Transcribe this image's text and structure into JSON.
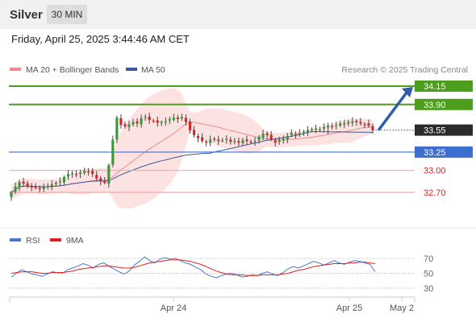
{
  "header": {
    "symbol": "Silver",
    "timeframe": "30 MIN",
    "datetime": "Friday, April 25, 2025 3:44:46 AM CET"
  },
  "legend": {
    "ma20_label": "MA 20 + Bollinger Bands",
    "ma50_label": "MA 50",
    "attribution": "Research © 2025 Trading Central",
    "ma20_color": "#f08a8a",
    "ma50_color": "#3c5a9a"
  },
  "rsi_legend": {
    "rsi_label": "RSI",
    "ma_label": "9MA",
    "rsi_color": "#4a78c8",
    "ma_color": "#e02020"
  },
  "chart_data": [
    {
      "type": "candlestick",
      "title": "Silver 30 MIN",
      "ylim": [
        32.4,
        34.4
      ],
      "x_ticks": [
        "Apr 24",
        "Apr 25",
        "May 2"
      ],
      "levels": [
        {
          "value": "34.15",
          "kind": "target",
          "color": "#4c9e1c"
        },
        {
          "value": "33.90",
          "kind": "resistance",
          "color": "#4c9e1c"
        },
        {
          "value": "33.55",
          "kind": "current",
          "color": "#222222"
        },
        {
          "value": "33.25",
          "kind": "pivot",
          "color": "#3c6fd0"
        },
        {
          "value": "33.00",
          "kind": "support",
          "color": "#e02020"
        },
        {
          "value": "32.70",
          "kind": "support",
          "color": "#e02020"
        }
      ],
      "closes": [
        32.7,
        32.78,
        32.84,
        32.82,
        32.79,
        32.77,
        32.76,
        32.75,
        32.77,
        32.79,
        32.81,
        32.83,
        32.85,
        32.91,
        32.95,
        32.96,
        32.94,
        32.97,
        32.99,
        32.98,
        32.95,
        32.89,
        32.85,
        32.83,
        33.07,
        33.42,
        33.72,
        33.62,
        33.6,
        33.63,
        33.66,
        33.64,
        33.71,
        33.73,
        33.69,
        33.67,
        33.65,
        33.66,
        33.67,
        33.7,
        33.72,
        33.7,
        33.73,
        33.66,
        33.55,
        33.48,
        33.44,
        33.4,
        33.38,
        33.42,
        33.43,
        33.4,
        33.41,
        33.43,
        33.39,
        33.4,
        33.38,
        33.41,
        33.4,
        33.39,
        33.4,
        33.46,
        33.5,
        33.48,
        33.42,
        33.38,
        33.41,
        33.43,
        33.47,
        33.51,
        33.49,
        33.51,
        33.53,
        33.55,
        33.56,
        33.57,
        33.56,
        33.59,
        33.61,
        33.6,
        33.62,
        33.64,
        33.63,
        33.66,
        33.67,
        33.66,
        33.64,
        33.63,
        33.61,
        33.55
      ],
      "target_value": 34.15
    },
    {
      "type": "line",
      "title": "RSI",
      "ylim": [
        20,
        80
      ],
      "y_ticks": [
        "70",
        "50",
        "30"
      ],
      "series": [
        {
          "name": "RSI",
          "values": [
            45,
            50,
            55,
            52,
            49,
            48,
            46,
            49,
            52,
            51,
            50,
            55,
            57,
            60,
            63,
            61,
            57,
            62,
            64,
            60,
            56,
            52,
            49,
            53,
            61,
            66,
            72,
            67,
            64,
            69,
            71,
            69,
            70,
            67,
            64,
            62,
            58,
            55,
            49,
            46,
            44,
            47,
            49,
            50,
            48,
            45,
            46,
            48,
            47,
            50,
            52,
            49,
            47,
            51,
            56,
            59,
            57,
            60,
            63,
            66,
            64,
            61,
            64,
            67,
            64,
            62,
            65,
            67,
            66,
            64,
            62,
            52
          ]
        },
        {
          "name": "9MA",
          "values": [
            50,
            51,
            52,
            52,
            52,
            51,
            50,
            50,
            51,
            51,
            51,
            52,
            53,
            55,
            56,
            57,
            58,
            59,
            60,
            60,
            59,
            58,
            57,
            57,
            58,
            60,
            62,
            64,
            65,
            66,
            67,
            68,
            68,
            68,
            67,
            66,
            64,
            62,
            59,
            56,
            53,
            51,
            49,
            48,
            48,
            48,
            47,
            47,
            47,
            48,
            48,
            48,
            48,
            49,
            50,
            52,
            54,
            55,
            57,
            59,
            60,
            61,
            62,
            63,
            63,
            63,
            64,
            64,
            65,
            65,
            64,
            63
          ]
        }
      ]
    }
  ]
}
